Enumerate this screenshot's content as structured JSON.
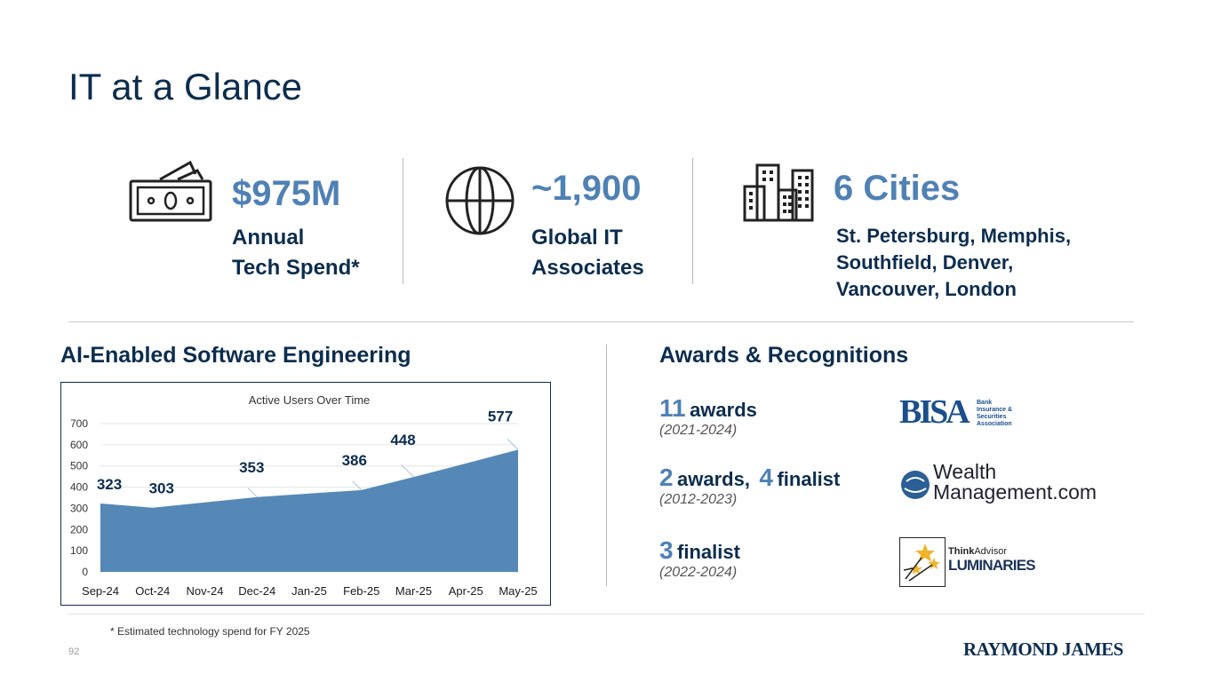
{
  "title": "IT at a Glance",
  "stats": [
    {
      "icon": "money-icon",
      "big": "$975M",
      "line1": "Annual",
      "line2": "Tech Spend*"
    },
    {
      "icon": "globe-icon",
      "big": "~1,900",
      "line1": "Global IT",
      "line2": "Associates"
    },
    {
      "icon": "buildings-icon",
      "big": "6 Cities",
      "line1": "St. Petersburg, Memphis,",
      "line2": "Southfield, Denver,",
      "line3": "Vancouver, London"
    }
  ],
  "ai_section": {
    "heading": "AI-Enabled Software Engineering"
  },
  "awards_section": {
    "heading": "Awards & Recognitions",
    "items": [
      {
        "num1": "11",
        "txt1": "awards",
        "num2": "",
        "txt2": "",
        "years": "(2021-2024)",
        "logo": "BISA",
        "logo_sub": [
          "Bank",
          "Insurance &",
          "Securities",
          "Association"
        ]
      },
      {
        "num1": "2",
        "txt1": "awards,",
        "num2": "4",
        "txt2": "finalist",
        "years": "(2012-2023)",
        "logo_a": "Wealth",
        "logo_b": "Management.com"
      },
      {
        "num1": "3",
        "txt1": "finalist",
        "years": "(2022-2024)",
        "logo_think": "Think",
        "logo_advisor": "Advisor",
        "logo_lum": "LUMINARIES"
      }
    ]
  },
  "chart_data": {
    "type": "area",
    "title": "Active Users Over Time",
    "categories": [
      "Sep-24",
      "Oct-24",
      "Nov-24",
      "Dec-24",
      "Jan-25",
      "Feb-25",
      "Mar-25",
      "Apr-25",
      "May-25"
    ],
    "values": [
      323,
      303,
      328,
      353,
      370,
      386,
      448,
      512,
      577
    ],
    "labels": [
      {
        "category": "Sep-24",
        "value": "323"
      },
      {
        "category": "Oct-24",
        "value": "303"
      },
      {
        "category": "Dec-24",
        "value": "353"
      },
      {
        "category": "Feb-25",
        "value": "386"
      },
      {
        "category": "Mar-25",
        "value": "448"
      },
      {
        "category": "May-25",
        "value": "577"
      }
    ],
    "yticks": [
      "0",
      "100",
      "200",
      "300",
      "400",
      "500",
      "600",
      "700"
    ],
    "ylim": [
      0,
      700
    ],
    "color": "#5588b6"
  },
  "footnote": "* Estimated technology spend for FY 2025",
  "page_number": "92",
  "brand": "RAYMOND JAMES"
}
